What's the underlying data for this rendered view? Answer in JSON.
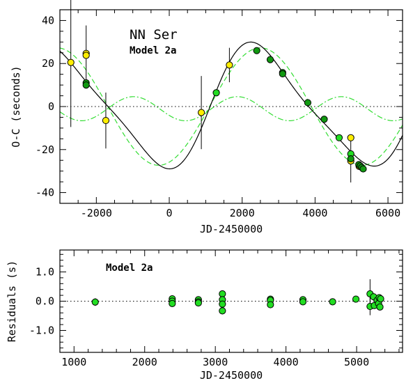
{
  "colors": {
    "yellow_point": "#ffee00",
    "green_point": "#22dd22",
    "dark_green_point": "#119911",
    "model_curve": "#000000",
    "component_curve": "#33dd33"
  },
  "chart_data": [
    {
      "id": "top",
      "type": "scatter",
      "title": "NN Ser",
      "subtitle": "Model 2a",
      "xlabel": "JD-2450000",
      "ylabel": "O-C (seconds)",
      "xlim": [
        -3000,
        6400
      ],
      "ylim": [
        -45,
        45
      ],
      "xticks": [
        -2000,
        0,
        2000,
        4000,
        6000
      ],
      "yticks": [
        -40,
        -20,
        0,
        20,
        40
      ],
      "grid": false,
      "zero_line": true,
      "series": [
        {
          "marker": "yellow",
          "points": [
            {
              "x": -2700,
              "y": 20.5,
              "err": 30
            },
            {
              "x": -2280,
              "y": 24.7,
              "err": 13
            },
            {
              "x": -2280,
              "y": 23.8,
              "err": 0
            },
            {
              "x": -1740,
              "y": -6.5,
              "err": 13
            },
            {
              "x": 880,
              "y": -2.8,
              "err": 17
            },
            {
              "x": 1650,
              "y": 19.3,
              "err": 8
            },
            {
              "x": 4980,
              "y": -14.5,
              "err": 0
            },
            {
              "x": 4980,
              "y": -25.3,
              "err": 10
            },
            {
              "x": 5210,
              "y": -27.8,
              "err": 0
            }
          ]
        },
        {
          "marker": "green",
          "points": [
            {
              "x": 1290,
              "y": 6.4,
              "err": 0
            },
            {
              "x": 4660,
              "y": -14.5,
              "err": 0
            },
            {
              "x": 4980,
              "y": -22.0,
              "err": 0
            }
          ]
        },
        {
          "marker": "dark_green",
          "points": [
            {
              "x": -2280,
              "y": 11.0,
              "err": 0
            },
            {
              "x": -2280,
              "y": 10.0,
              "err": 0
            },
            {
              "x": 2400,
              "y": 26.0,
              "err": 0
            },
            {
              "x": 2770,
              "y": 21.8,
              "err": 0
            },
            {
              "x": 3110,
              "y": 15.8,
              "err": 0
            },
            {
              "x": 3110,
              "y": 15.2,
              "err": 0
            },
            {
              "x": 3800,
              "y": 1.8,
              "err": 0
            },
            {
              "x": 4250,
              "y": -5.9,
              "err": 0
            },
            {
              "x": 4980,
              "y": -24.3,
              "err": 0
            },
            {
              "x": 5200,
              "y": -27.0,
              "err": 0
            },
            {
              "x": 5240,
              "y": -27.6,
              "err": 0
            },
            {
              "x": 5280,
              "y": -28.3,
              "err": 0
            },
            {
              "x": 5320,
              "y": -29.0,
              "err": 0
            }
          ]
        }
      ]
    },
    {
      "id": "bottom",
      "type": "scatter",
      "subtitle": "Model 2a",
      "xlabel": "JD-2450000",
      "ylabel": "Residuals (s)",
      "xlim": [
        800,
        5650
      ],
      "ylim": [
        -1.75,
        1.75
      ],
      "xticks": [
        1000,
        2000,
        3000,
        4000,
        5000
      ],
      "yticks": [
        -1.0,
        0.0,
        1.0
      ],
      "yticklabels": [
        "-1.0",
        "0.0",
        "1.0"
      ],
      "grid": false,
      "zero_line": true,
      "points": [
        {
          "x": 1300,
          "y": -0.03,
          "err": 0.13
        },
        {
          "x": 2390,
          "y": 0.08,
          "err": 0
        },
        {
          "x": 2390,
          "y": 0.0,
          "err": 0
        },
        {
          "x": 2390,
          "y": -0.08,
          "err": 0
        },
        {
          "x": 2760,
          "y": 0.05,
          "err": 0
        },
        {
          "x": 2760,
          "y": -0.02,
          "err": 0
        },
        {
          "x": 2760,
          "y": -0.06,
          "err": 0
        },
        {
          "x": 3100,
          "y": 0.25,
          "err": 0.12
        },
        {
          "x": 3100,
          "y": 0.05,
          "err": 0
        },
        {
          "x": 3100,
          "y": -0.1,
          "err": 0
        },
        {
          "x": 3100,
          "y": -0.33,
          "err": 0.12
        },
        {
          "x": 3780,
          "y": 0.07,
          "err": 0
        },
        {
          "x": 3780,
          "y": 0.03,
          "err": 0
        },
        {
          "x": 3780,
          "y": -0.12,
          "err": 0
        },
        {
          "x": 4240,
          "y": 0.05,
          "err": 0
        },
        {
          "x": 4240,
          "y": -0.02,
          "err": 0
        },
        {
          "x": 4660,
          "y": -0.02,
          "err": 0
        },
        {
          "x": 4990,
          "y": 0.07,
          "err": 0
        },
        {
          "x": 5190,
          "y": 0.25,
          "err": 0.5
        },
        {
          "x": 5190,
          "y": -0.18,
          "err": 0.3
        },
        {
          "x": 5240,
          "y": 0.15,
          "err": 0
        },
        {
          "x": 5250,
          "y": -0.15,
          "err": 0
        },
        {
          "x": 5290,
          "y": 0.03,
          "err": 0
        },
        {
          "x": 5310,
          "y": -0.08,
          "err": 0
        },
        {
          "x": 5320,
          "y": 0.12,
          "err": 0
        },
        {
          "x": 5330,
          "y": -0.2,
          "err": 0
        },
        {
          "x": 5340,
          "y": 0.08,
          "err": 0
        }
      ]
    }
  ]
}
